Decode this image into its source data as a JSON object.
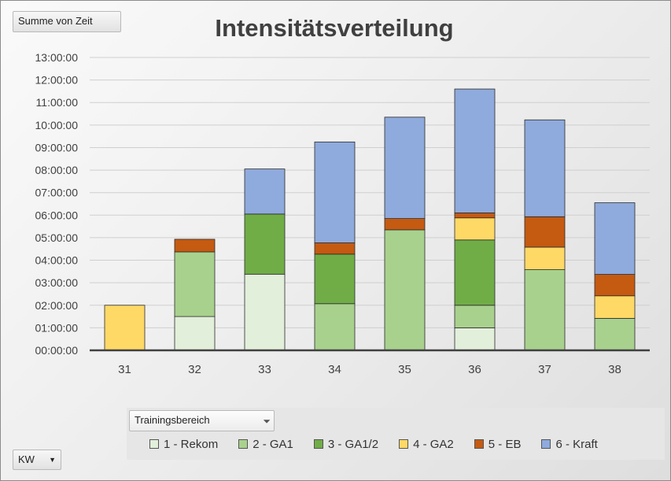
{
  "field_button": "Summe von Zeit",
  "axis_button": "KW",
  "legend_button": "Trainingsbereich",
  "chart_data": {
    "type": "bar",
    "stacked": true,
    "title": "Intensitätsverteilung",
    "xlabel": "",
    "ylabel": "",
    "categories": [
      "31",
      "32",
      "33",
      "34",
      "35",
      "36",
      "37",
      "38"
    ],
    "y_unit": "hours",
    "ylim": [
      0,
      13
    ],
    "y_ticks": [
      "00:00:00",
      "01:00:00",
      "02:00:00",
      "03:00:00",
      "04:00:00",
      "05:00:00",
      "06:00:00",
      "07:00:00",
      "08:00:00",
      "09:00:00",
      "10:00:00",
      "11:00:00",
      "12:00:00",
      "13:00:00"
    ],
    "grid": true,
    "legend": "bottom",
    "series": [
      {
        "name": "1 - Rekom",
        "color": "#e2efda",
        "values": [
          0,
          1.5,
          3.38,
          0,
          0,
          1.0,
          0,
          0
        ]
      },
      {
        "name": "2 - GA1",
        "color": "#a9d18e",
        "values": [
          0,
          2.87,
          0,
          2.07,
          5.35,
          1.0,
          3.58,
          1.42
        ]
      },
      {
        "name": "3 - GA1/2",
        "color": "#70ad47",
        "values": [
          0,
          0,
          2.67,
          2.2,
          0,
          2.9,
          0,
          0
        ]
      },
      {
        "name": "4 - GA2",
        "color": "#ffd966",
        "values": [
          2.0,
          0,
          0,
          0,
          0,
          0.98,
          1.0,
          1.0
        ]
      },
      {
        "name": "5 - EB",
        "color": "#c55a11",
        "values": [
          0,
          0.56,
          0,
          0.5,
          0.5,
          0.22,
          1.35,
          0.95
        ]
      },
      {
        "name": "6 - Kraft",
        "color": "#8faadc",
        "values": [
          0,
          0,
          2.0,
          4.48,
          4.5,
          5.5,
          4.3,
          3.18
        ]
      }
    ]
  }
}
